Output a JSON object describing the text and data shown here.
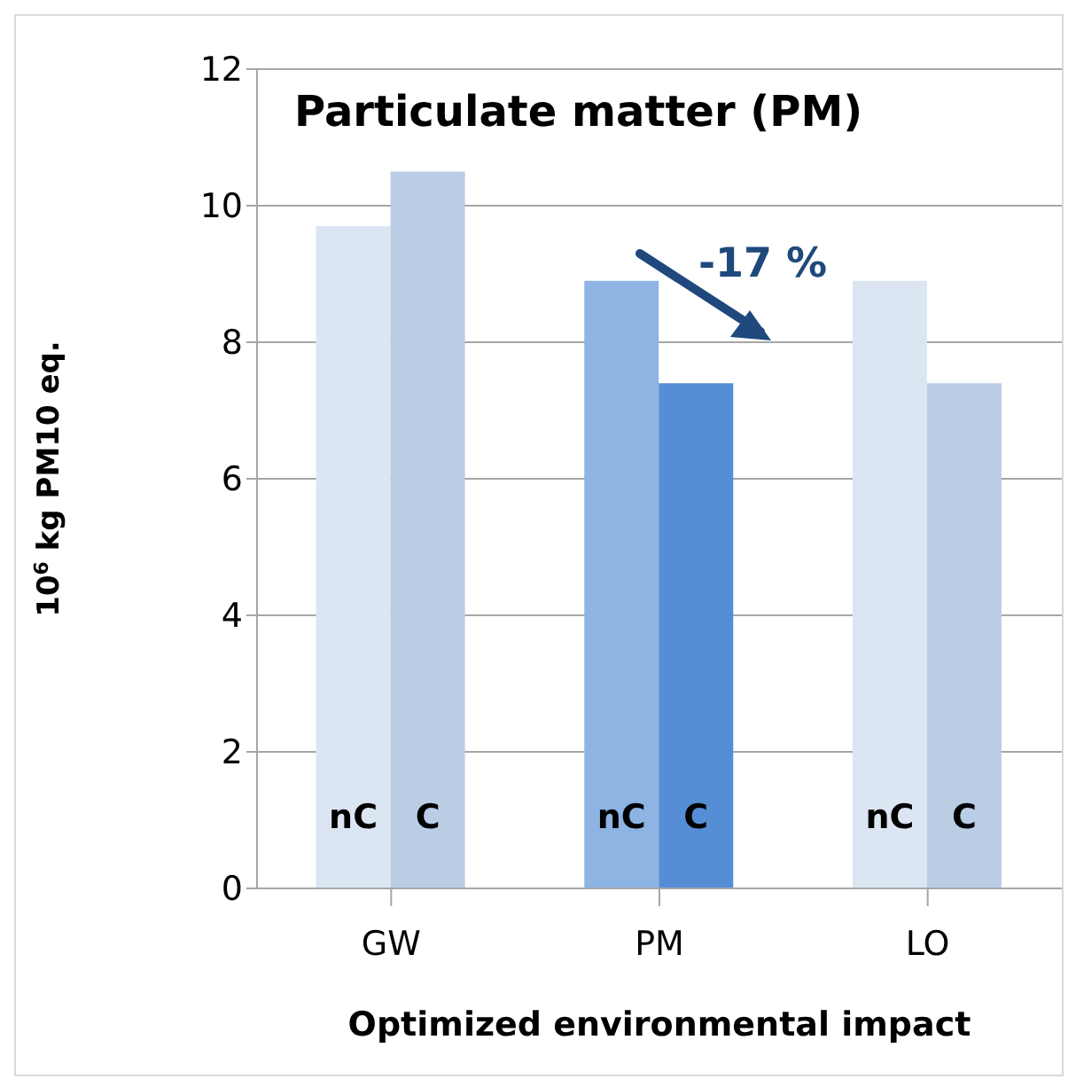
{
  "chart_data": {
    "type": "bar",
    "title": "Particulate matter (PM)",
    "xlabel": "Optimized environmental impact",
    "ylabel": "10$^{6}$ kg PM10 eq.",
    "categories": [
      "GW",
      "PM",
      "LO"
    ],
    "series": [
      {
        "name": "nC",
        "colors": [
          "#dce6f2",
          "#8eb4e3",
          "#dce6f2"
        ],
        "values": [
          9.7,
          8.9,
          8.9
        ]
      },
      {
        "name": "C",
        "colors": [
          "#b9cde5",
          "#558ed5",
          "#b9cde5"
        ],
        "values": [
          10.5,
          7.4,
          7.4
        ]
      }
    ],
    "ylim": [
      0,
      12
    ],
    "yticks": [
      0,
      2,
      4,
      6,
      8,
      10,
      12
    ],
    "grid": "y",
    "annotations": [
      "-17 %"
    ]
  }
}
